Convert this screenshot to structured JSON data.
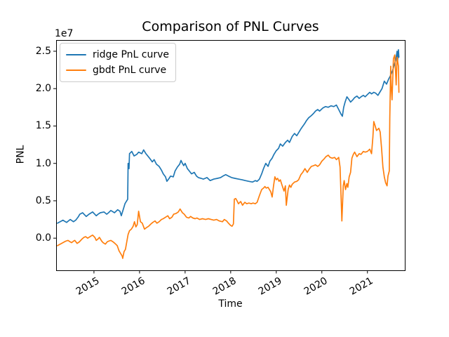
{
  "chart_data": {
    "type": "line",
    "title": "Comparison of PNL Curves",
    "xlabel": "Time",
    "ylabel": "PNL",
    "y_offset_text": "1e7",
    "y_scale_factor": 10000000,
    "grid": false,
    "xlim": [
      2014.17,
      2021.82
    ],
    "ylim": [
      -0.43,
      2.65
    ],
    "x_tick_values": [
      2015,
      2016,
      2017,
      2018,
      2019,
      2020,
      2021
    ],
    "x_tick_labels": [
      "2015",
      "2016",
      "2017",
      "2018",
      "2019",
      "2020",
      "2021"
    ],
    "y_tick_values": [
      0.0,
      0.5,
      1.0,
      1.5,
      2.0,
      2.5
    ],
    "y_tick_labels": [
      "0.0",
      "0.5",
      "1.0",
      "1.5",
      "2.0",
      "2.5"
    ],
    "legend": {
      "position": "upper left",
      "entries": [
        {
          "label": "ridge PnL curve",
          "color": "#1f77b4"
        },
        {
          "label": "gbdt PnL curve",
          "color": "#ff7f0e"
        }
      ]
    },
    "series": [
      {
        "name": "ridge PnL curve",
        "color": "#1f77b4",
        "x": [
          2014.2,
          2014.26,
          2014.32,
          2014.4,
          2014.48,
          2014.55,
          2014.6,
          2014.65,
          2014.69,
          2014.75,
          2014.83,
          2014.89,
          2014.97,
          2015.05,
          2015.09,
          2015.14,
          2015.22,
          2015.28,
          2015.32,
          2015.37,
          2015.45,
          2015.52,
          2015.57,
          2015.6,
          2015.65,
          2015.68,
          2015.71,
          2015.74,
          2015.75,
          2015.77,
          2015.78,
          2015.83,
          2015.88,
          2015.94,
          2015.98,
          2016.05,
          2016.09,
          2016.14,
          2016.22,
          2016.28,
          2016.32,
          2016.37,
          2016.43,
          2016.48,
          2016.52,
          2016.57,
          2016.6,
          2016.65,
          2016.68,
          2016.74,
          2016.78,
          2016.83,
          2016.88,
          2016.91,
          2016.94,
          2016.97,
          2017.0,
          2017.05,
          2017.09,
          2017.14,
          2017.2,
          2017.25,
          2017.29,
          2017.35,
          2017.4,
          2017.48,
          2017.55,
          2017.63,
          2017.71,
          2017.78,
          2017.83,
          2017.89,
          2017.95,
          2018.02,
          2018.09,
          2018.17,
          2018.25,
          2018.32,
          2018.4,
          2018.48,
          2018.54,
          2018.58,
          2018.63,
          2018.68,
          2018.72,
          2018.77,
          2018.82,
          2018.86,
          2018.91,
          2018.95,
          2019.0,
          2019.05,
          2019.09,
          2019.14,
          2019.2,
          2019.25,
          2019.29,
          2019.35,
          2019.4,
          2019.45,
          2019.51,
          2019.55,
          2019.62,
          2019.66,
          2019.71,
          2019.77,
          2019.82,
          2019.86,
          2019.91,
          2019.95,
          2020.02,
          2020.08,
          2020.14,
          2020.2,
          2020.26,
          2020.32,
          2020.37,
          2020.42,
          2020.45,
          2020.48,
          2020.51,
          2020.55,
          2020.6,
          2020.63,
          2020.68,
          2020.72,
          2020.77,
          2020.82,
          2020.86,
          2020.91,
          2020.95,
          2021.0,
          2021.05,
          2021.09,
          2021.14,
          2021.18,
          2021.23,
          2021.28,
          2021.32,
          2021.37,
          2021.42,
          2021.46,
          2021.51,
          2021.55,
          2021.58,
          2021.62,
          2021.65,
          2021.66,
          2021.68,
          2021.69
        ],
        "y": [
          0.2,
          0.22,
          0.24,
          0.21,
          0.25,
          0.22,
          0.24,
          0.28,
          0.32,
          0.34,
          0.29,
          0.32,
          0.35,
          0.3,
          0.32,
          0.34,
          0.35,
          0.32,
          0.34,
          0.37,
          0.34,
          0.38,
          0.36,
          0.3,
          0.4,
          0.46,
          0.49,
          0.52,
          1.0,
          0.93,
          1.13,
          1.16,
          1.1,
          1.12,
          1.15,
          1.13,
          1.18,
          1.13,
          1.07,
          1.02,
          1.05,
          0.99,
          0.96,
          0.91,
          0.86,
          0.82,
          0.76,
          0.8,
          0.83,
          0.82,
          0.9,
          0.95,
          0.99,
          1.04,
          1.0,
          0.97,
          1.0,
          0.93,
          0.9,
          0.86,
          0.88,
          0.83,
          0.81,
          0.8,
          0.79,
          0.81,
          0.77,
          0.79,
          0.8,
          0.81,
          0.83,
          0.85,
          0.83,
          0.81,
          0.8,
          0.79,
          0.78,
          0.77,
          0.76,
          0.75,
          0.77,
          0.76,
          0.79,
          0.86,
          0.93,
          1.0,
          0.96,
          1.03,
          1.07,
          1.12,
          1.17,
          1.2,
          1.26,
          1.23,
          1.28,
          1.31,
          1.28,
          1.36,
          1.4,
          1.37,
          1.43,
          1.47,
          1.53,
          1.57,
          1.61,
          1.64,
          1.67,
          1.7,
          1.72,
          1.7,
          1.74,
          1.76,
          1.75,
          1.77,
          1.76,
          1.78,
          1.72,
          1.66,
          1.63,
          1.75,
          1.82,
          1.89,
          1.85,
          1.82,
          1.85,
          1.88,
          1.9,
          1.87,
          1.89,
          1.91,
          1.89,
          1.92,
          1.95,
          1.93,
          1.95,
          1.94,
          1.91,
          1.96,
          2.0,
          2.1,
          2.06,
          2.12,
          2.18,
          2.24,
          2.3,
          2.38,
          2.5,
          2.35,
          2.52,
          2.42
        ]
      },
      {
        "name": "gbdt PnL curve",
        "color": "#ff7f0e",
        "x": [
          2014.2,
          2014.26,
          2014.32,
          2014.38,
          2014.43,
          2014.48,
          2014.51,
          2014.55,
          2014.58,
          2014.63,
          2014.68,
          2014.74,
          2014.78,
          2014.82,
          2014.86,
          2014.89,
          2014.94,
          2014.97,
          2015.02,
          2015.05,
          2015.09,
          2015.12,
          2015.17,
          2015.2,
          2015.25,
          2015.29,
          2015.32,
          2015.37,
          2015.42,
          2015.46,
          2015.51,
          2015.55,
          2015.58,
          2015.62,
          2015.63,
          2015.66,
          2015.69,
          2015.72,
          2015.75,
          2015.78,
          2015.82,
          2015.86,
          2015.89,
          2015.92,
          2015.95,
          2015.98,
          2016.02,
          2016.06,
          2016.11,
          2016.15,
          2016.2,
          2016.25,
          2016.29,
          2016.34,
          2016.38,
          2016.43,
          2016.48,
          2016.52,
          2016.57,
          2016.62,
          2016.66,
          2016.71,
          2016.75,
          2016.8,
          2016.85,
          2016.89,
          2016.94,
          2016.98,
          2017.03,
          2017.08,
          2017.12,
          2017.17,
          2017.22,
          2017.26,
          2017.32,
          2017.38,
          2017.45,
          2017.51,
          2017.57,
          2017.63,
          2017.69,
          2017.75,
          2017.82,
          2017.86,
          2017.91,
          2017.95,
          2018.0,
          2018.03,
          2018.06,
          2018.08,
          2018.11,
          2018.14,
          2018.17,
          2018.22,
          2018.26,
          2018.31,
          2018.35,
          2018.4,
          2018.45,
          2018.49,
          2018.54,
          2018.58,
          2018.63,
          2018.68,
          2018.72,
          2018.75,
          2018.78,
          2018.82,
          2018.88,
          2018.91,
          2018.94,
          2018.97,
          2019.0,
          2019.03,
          2019.06,
          2019.09,
          2019.12,
          2019.17,
          2019.2,
          2019.22,
          2019.26,
          2019.29,
          2019.32,
          2019.35,
          2019.4,
          2019.45,
          2019.49,
          2019.54,
          2019.58,
          2019.63,
          2019.68,
          2019.72,
          2019.77,
          2019.82,
          2019.86,
          2019.91,
          2019.95,
          2020.0,
          2020.05,
          2020.09,
          2020.14,
          2020.18,
          2020.23,
          2020.28,
          2020.32,
          2020.37,
          2020.4,
          2020.42,
          2020.44,
          2020.47,
          2020.49,
          2020.52,
          2020.55,
          2020.57,
          2020.6,
          2020.63,
          2020.66,
          2020.69,
          2020.72,
          2020.77,
          2020.82,
          2020.86,
          2020.91,
          2020.95,
          2021.0,
          2021.05,
          2021.09,
          2021.12,
          2021.14,
          2021.17,
          2021.2,
          2021.25,
          2021.28,
          2021.31,
          2021.34,
          2021.37,
          2021.4,
          2021.43,
          2021.45,
          2021.48,
          2021.49,
          2021.51,
          2021.52,
          2021.54,
          2021.57,
          2021.6,
          2021.63,
          2021.65,
          2021.68,
          2021.69
        ],
        "y": [
          -0.1,
          -0.08,
          -0.06,
          -0.04,
          -0.03,
          -0.05,
          -0.06,
          -0.04,
          -0.03,
          -0.07,
          -0.05,
          -0.01,
          0.01,
          0.02,
          0.0,
          0.01,
          0.03,
          0.04,
          0.01,
          -0.03,
          -0.01,
          0.01,
          -0.04,
          -0.06,
          -0.08,
          -0.05,
          -0.04,
          -0.03,
          -0.05,
          -0.07,
          -0.1,
          -0.17,
          -0.2,
          -0.24,
          -0.27,
          -0.18,
          -0.15,
          -0.05,
          0.05,
          0.1,
          0.12,
          0.16,
          0.22,
          0.15,
          0.18,
          0.36,
          0.22,
          0.2,
          0.12,
          0.14,
          0.16,
          0.19,
          0.21,
          0.23,
          0.2,
          0.22,
          0.25,
          0.26,
          0.28,
          0.3,
          0.26,
          0.28,
          0.32,
          0.33,
          0.35,
          0.39,
          0.34,
          0.32,
          0.28,
          0.27,
          0.29,
          0.27,
          0.26,
          0.27,
          0.25,
          0.26,
          0.25,
          0.26,
          0.25,
          0.24,
          0.25,
          0.23,
          0.22,
          0.25,
          0.23,
          0.2,
          0.17,
          0.16,
          0.19,
          0.52,
          0.53,
          0.5,
          0.46,
          0.49,
          0.44,
          0.48,
          0.46,
          0.47,
          0.46,
          0.47,
          0.46,
          0.48,
          0.57,
          0.65,
          0.67,
          0.69,
          0.67,
          0.68,
          0.62,
          0.55,
          0.7,
          0.82,
          0.78,
          0.8,
          0.76,
          0.78,
          0.72,
          0.63,
          0.7,
          0.44,
          0.65,
          0.71,
          0.68,
          0.72,
          0.75,
          0.76,
          0.78,
          0.85,
          0.88,
          0.93,
          0.88,
          0.92,
          0.96,
          0.97,
          0.98,
          0.96,
          0.98,
          1.03,
          1.06,
          1.09,
          1.11,
          1.08,
          1.07,
          1.08,
          1.05,
          1.08,
          0.95,
          0.6,
          0.23,
          0.7,
          0.77,
          0.65,
          0.73,
          0.68,
          0.82,
          0.88,
          1.07,
          1.12,
          1.15,
          1.09,
          1.13,
          1.12,
          1.16,
          1.15,
          1.16,
          1.19,
          1.13,
          1.35,
          1.56,
          1.5,
          1.44,
          1.47,
          1.42,
          1.2,
          0.95,
          0.82,
          0.74,
          0.7,
          0.83,
          0.9,
          1.6,
          2.3,
          2.05,
          1.85,
          2.4,
          2.45,
          2.05,
          2.42,
          2.3,
          1.95
        ]
      }
    ]
  }
}
